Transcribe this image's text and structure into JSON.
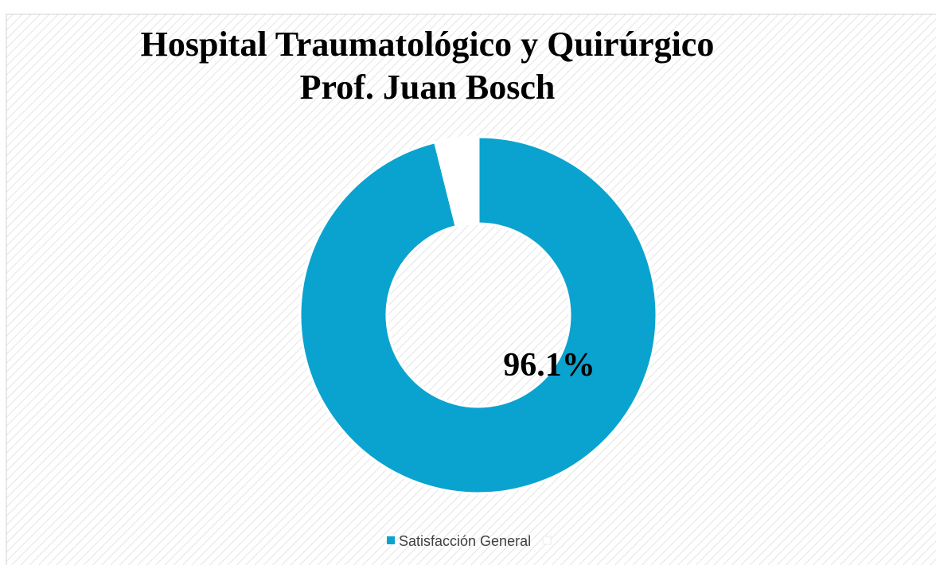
{
  "chart_data": {
    "type": "donut",
    "title": [
      "Hospital Traumatológico y Quirúrgico",
      "Prof. Juan Bosch"
    ],
    "categories": [
      "Satisfacción General",
      null
    ],
    "values": [
      96.1,
      3.9
    ],
    "value_labels": [
      "96.1%",
      null
    ],
    "colors": [
      "#0aa3cf",
      "#ffffff"
    ],
    "legend": "bottom"
  }
}
